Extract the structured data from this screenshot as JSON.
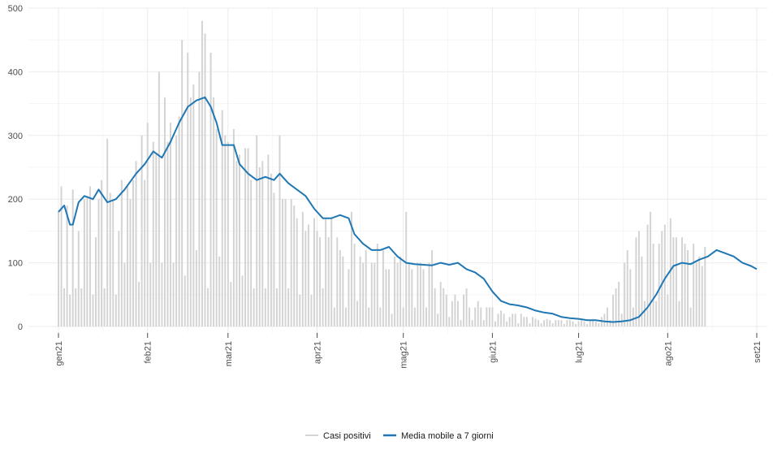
{
  "chart_data": {
    "type": "bar+line",
    "title": "",
    "xlabel": "",
    "ylabel": "",
    "ylim": [
      0,
      500
    ],
    "y_ticks": [
      0,
      100,
      200,
      300,
      400,
      500
    ],
    "x_domain": [
      "2021-01-01",
      "2021-09-01"
    ],
    "x_ticks": [
      {
        "date": "2021-01-01",
        "label": "gen21"
      },
      {
        "date": "2021-02-01",
        "label": "feb21"
      },
      {
        "date": "2021-03-01",
        "label": "mar21"
      },
      {
        "date": "2021-04-01",
        "label": "apr21"
      },
      {
        "date": "2021-05-01",
        "label": "mag21"
      },
      {
        "date": "2021-06-01",
        "label": "giu21"
      },
      {
        "date": "2021-07-01",
        "label": "lug21"
      },
      {
        "date": "2021-08-01",
        "label": "ago21"
      },
      {
        "date": "2021-09-01",
        "label": "set21"
      }
    ],
    "grid": true,
    "legend_position": "bottom",
    "series": [
      {
        "name": "Casi positivi",
        "kind": "bar",
        "color": "#d3d3d3",
        "start_date": "2021-01-01",
        "values": [
          180,
          220,
          60,
          190,
          50,
          215,
          60,
          150,
          60,
          200,
          205,
          220,
          50,
          140,
          200,
          230,
          60,
          295,
          210,
          200,
          50,
          150,
          230,
          100,
          220,
          200,
          230,
          260,
          70,
          300,
          230,
          320,
          100,
          290,
          270,
          400,
          100,
          360,
          290,
          320,
          100,
          300,
          330,
          450,
          80,
          430,
          360,
          380,
          120,
          400,
          480,
          460,
          60,
          430,
          360,
          310,
          110,
          340,
          300,
          290,
          70,
          310,
          260,
          270,
          80,
          280,
          280,
          230,
          60,
          300,
          250,
          260,
          60,
          270,
          240,
          210,
          60,
          300,
          200,
          200,
          60,
          200,
          190,
          170,
          50,
          180,
          150,
          160,
          50,
          170,
          150,
          140,
          60,
          170,
          140,
          170,
          30,
          140,
          120,
          110,
          30,
          90,
          180,
          130,
          40,
          110,
          100,
          120,
          30,
          100,
          100,
          130,
          30,
          120,
          90,
          90,
          20,
          110,
          100,
          110,
          30,
          180,
          100,
          90,
          30,
          100,
          100,
          90,
          30,
          100,
          120,
          60,
          20,
          70,
          60,
          50,
          15,
          40,
          50,
          40,
          10,
          50,
          60,
          30,
          10,
          30,
          40,
          30,
          10,
          30,
          30,
          30,
          8,
          20,
          25,
          20,
          8,
          15,
          20,
          20,
          5,
          20,
          15,
          15,
          5,
          15,
          12,
          10,
          5,
          10,
          12,
          10,
          5,
          10,
          10,
          10,
          4,
          10,
          10,
          8,
          4,
          8,
          10,
          8,
          4,
          10,
          12,
          8,
          5,
          15,
          20,
          30,
          10,
          50,
          60,
          70,
          20,
          100,
          120,
          90,
          30,
          140,
          150,
          110,
          40,
          160,
          180,
          130,
          40,
          130,
          150,
          160,
          50,
          170,
          140,
          140,
          40,
          140,
          130,
          120,
          30,
          130,
          100,
          110,
          95,
          125
        ],
        "values_note": "estimated daily values read off chart"
      },
      {
        "name": "Media mobile a 7 giorni",
        "kind": "line",
        "color": "#1f77b4",
        "points": [
          [
            "2021-01-01",
            180
          ],
          [
            "2021-01-03",
            190
          ],
          [
            "2021-01-05",
            160
          ],
          [
            "2021-01-06",
            160
          ],
          [
            "2021-01-08",
            195
          ],
          [
            "2021-01-10",
            205
          ],
          [
            "2021-01-13",
            200
          ],
          [
            "2021-01-15",
            215
          ],
          [
            "2021-01-18",
            195
          ],
          [
            "2021-01-21",
            200
          ],
          [
            "2021-01-24",
            215
          ],
          [
            "2021-01-28",
            240
          ],
          [
            "2021-01-31",
            255
          ],
          [
            "2021-02-03",
            275
          ],
          [
            "2021-02-06",
            265
          ],
          [
            "2021-02-09",
            290
          ],
          [
            "2021-02-12",
            320
          ],
          [
            "2021-02-15",
            345
          ],
          [
            "2021-02-18",
            355
          ],
          [
            "2021-02-21",
            360
          ],
          [
            "2021-02-23",
            345
          ],
          [
            "2021-02-25",
            320
          ],
          [
            "2021-02-27",
            285
          ],
          [
            "2021-03-03",
            285
          ],
          [
            "2021-03-05",
            255
          ],
          [
            "2021-03-08",
            240
          ],
          [
            "2021-03-11",
            230
          ],
          [
            "2021-03-14",
            235
          ],
          [
            "2021-03-17",
            230
          ],
          [
            "2021-03-19",
            240
          ],
          [
            "2021-03-22",
            225
          ],
          [
            "2021-03-25",
            215
          ],
          [
            "2021-03-28",
            205
          ],
          [
            "2021-03-31",
            185
          ],
          [
            "2021-04-03",
            170
          ],
          [
            "2021-04-06",
            170
          ],
          [
            "2021-04-09",
            175
          ],
          [
            "2021-04-12",
            170
          ],
          [
            "2021-04-14",
            145
          ],
          [
            "2021-04-17",
            130
          ],
          [
            "2021-04-20",
            120
          ],
          [
            "2021-04-23",
            120
          ],
          [
            "2021-04-26",
            125
          ],
          [
            "2021-04-29",
            110
          ],
          [
            "2021-05-02",
            100
          ],
          [
            "2021-05-05",
            98
          ],
          [
            "2021-05-08",
            97
          ],
          [
            "2021-05-11",
            96
          ],
          [
            "2021-05-14",
            100
          ],
          [
            "2021-05-17",
            97
          ],
          [
            "2021-05-20",
            100
          ],
          [
            "2021-05-23",
            90
          ],
          [
            "2021-05-26",
            85
          ],
          [
            "2021-05-29",
            75
          ],
          [
            "2021-06-01",
            55
          ],
          [
            "2021-06-04",
            40
          ],
          [
            "2021-06-07",
            35
          ],
          [
            "2021-06-10",
            33
          ],
          [
            "2021-06-13",
            30
          ],
          [
            "2021-06-16",
            25
          ],
          [
            "2021-06-19",
            22
          ],
          [
            "2021-06-22",
            20
          ],
          [
            "2021-06-25",
            15
          ],
          [
            "2021-06-28",
            13
          ],
          [
            "2021-07-01",
            12
          ],
          [
            "2021-07-04",
            10
          ],
          [
            "2021-07-07",
            10
          ],
          [
            "2021-07-10",
            8
          ],
          [
            "2021-07-13",
            7
          ],
          [
            "2021-07-16",
            8
          ],
          [
            "2021-07-19",
            10
          ],
          [
            "2021-07-22",
            15
          ],
          [
            "2021-07-25",
            30
          ],
          [
            "2021-07-28",
            50
          ],
          [
            "2021-07-31",
            75
          ],
          [
            "2021-08-03",
            95
          ],
          [
            "2021-08-06",
            100
          ],
          [
            "2021-08-09",
            98
          ],
          [
            "2021-08-12",
            105
          ],
          [
            "2021-08-15",
            110
          ],
          [
            "2021-08-18",
            120
          ],
          [
            "2021-08-21",
            115
          ],
          [
            "2021-08-24",
            110
          ],
          [
            "2021-08-27",
            100
          ],
          [
            "2021-08-30",
            95
          ],
          [
            "2021-09-01",
            90
          ]
        ]
      }
    ]
  }
}
